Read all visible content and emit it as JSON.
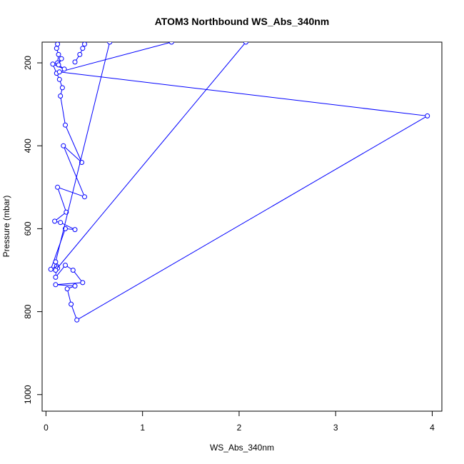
{
  "chart_data": {
    "type": "line",
    "title": "ATOM3 Northbound WS_Abs_340nm",
    "xlabel": "WS_Abs_340nm",
    "ylabel": "Pressure (mbar)",
    "xlim": [
      -0.04,
      4.1
    ],
    "ylim": [
      150,
      1040
    ],
    "y_reversed": true,
    "x_ticks": [
      "0",
      "1",
      "2",
      "3",
      "4"
    ],
    "y_ticks": [
      "200",
      "400",
      "600",
      "800",
      "1000"
    ],
    "x_tick_values": [
      0,
      1,
      2,
      3,
      4
    ],
    "y_tick_values": [
      200,
      400,
      600,
      800,
      1000
    ],
    "grid": false,
    "series_color": "#0000ff",
    "series": [
      {
        "x": [
          0.12,
          0.11,
          0.13,
          0.12,
          0.16,
          0.13,
          0.19,
          0.07,
          0.11,
          0.14,
          0.17,
          0.15,
          0.2,
          0.37,
          0.18,
          0.4,
          0.12,
          0.21,
          0.09,
          0.15,
          0.3,
          0.2,
          0.05,
          0.11,
          0.1,
          0.2,
          0.28,
          0.38,
          0.1,
          0.3,
          0.22,
          0.26,
          0.32,
          3.95,
          0.14,
          1.3
        ],
        "y": [
          155,
          165,
          180,
          200,
          190,
          205,
          215,
          203,
          225,
          240,
          260,
          280,
          350,
          440,
          400,
          523,
          500,
          560,
          582,
          585,
          602,
          600,
          698,
          690,
          717,
          688,
          700,
          730,
          735,
          738,
          745,
          782,
          820,
          328,
          222,
          150
        ]
      },
      {
        "x": [
          0.3,
          0.35,
          0.38,
          0.4
        ],
        "y": [
          198,
          180,
          165,
          155
        ]
      },
      {
        "x": [
          0.66,
          0.1,
          0.12
        ],
        "y": [
          150,
          680,
          695
        ]
      },
      {
        "x": [
          2.07,
          0.1
        ],
        "y": [
          150,
          700
        ]
      }
    ]
  }
}
